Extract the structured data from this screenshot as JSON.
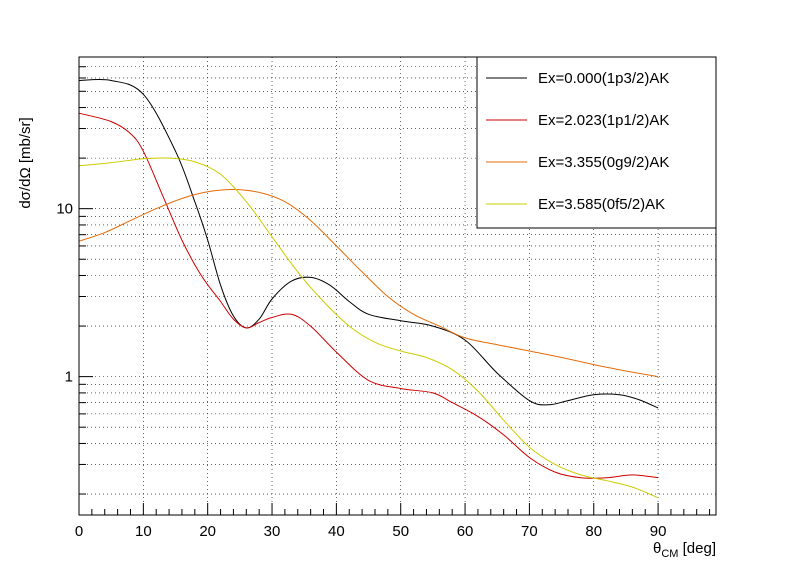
{
  "chart_data": {
    "type": "line",
    "title": "",
    "xlabel": {
      "main": "θ",
      "sub": "CM",
      "unit": " [deg]"
    },
    "ylabel": "dσ/dΩ [mb/sr]",
    "xlim": [
      0,
      99
    ],
    "ylim": [
      0.15,
      80
    ],
    "yscale": "log",
    "grid": true,
    "legend_position": "top-right",
    "x_ticks": [
      0,
      10,
      20,
      30,
      40,
      50,
      60,
      70,
      80,
      90
    ],
    "x_tick_labels": [
      "0",
      "10",
      "20",
      "30",
      "40",
      "50",
      "60",
      "70",
      "80",
      "90"
    ],
    "y_ticks": [
      1,
      10
    ],
    "y_tick_labels": [
      "1",
      "10"
    ],
    "series": [
      {
        "name": "Ex=0.000(1p3/2)AK",
        "color": "#000000",
        "x": [
          0,
          5,
          10,
          15,
          18,
          20,
          22,
          24,
          26,
          28,
          30,
          33,
          36,
          39,
          42,
          45,
          50,
          55,
          60,
          65,
          70,
          73,
          76,
          80,
          84,
          87,
          90
        ],
        "y": [
          58,
          58,
          48,
          22,
          11,
          6.5,
          3.5,
          2.3,
          1.95,
          2.2,
          2.9,
          3.7,
          3.9,
          3.5,
          2.8,
          2.35,
          2.15,
          2.0,
          1.65,
          1.05,
          0.72,
          0.68,
          0.72,
          0.78,
          0.78,
          0.73,
          0.65
        ]
      },
      {
        "name": "Ex=2.023(1p1/2)AK",
        "color": "#cc0000",
        "x": [
          0,
          5,
          8,
          10,
          13,
          16,
          19,
          22,
          24,
          26,
          28,
          30,
          33,
          36,
          40,
          45,
          50,
          55,
          58,
          62,
          66,
          70,
          74,
          78,
          82,
          86,
          90
        ],
        "y": [
          37,
          33,
          28,
          22,
          12,
          6.5,
          4,
          2.8,
          2.2,
          1.95,
          2.1,
          2.25,
          2.35,
          2.0,
          1.4,
          0.95,
          0.85,
          0.8,
          0.7,
          0.58,
          0.45,
          0.33,
          0.27,
          0.25,
          0.25,
          0.26,
          0.25
        ]
      },
      {
        "name": "Ex=3.355(0g9/2)AK",
        "color": "#e36c09",
        "x": [
          0,
          4,
          8,
          12,
          16,
          20,
          24,
          28,
          32,
          36,
          40,
          44,
          48,
          52,
          56,
          60,
          65,
          70,
          75,
          80,
          85,
          90
        ],
        "y": [
          6.4,
          7.2,
          8.5,
          10,
          11.5,
          12.6,
          13,
          12.5,
          11,
          8.5,
          6,
          4.2,
          3,
          2.35,
          2.0,
          1.7,
          1.55,
          1.42,
          1.3,
          1.18,
          1.08,
          1.0
        ]
      },
      {
        "name": "Ex=3.585(0f5/2)AK",
        "color": "#cccc00",
        "x": [
          0,
          5,
          10,
          14,
          18,
          22,
          26,
          30,
          34,
          38,
          42,
          46,
          50,
          54,
          58,
          62,
          66,
          70,
          74,
          78,
          82,
          86,
          90
        ],
        "y": [
          18,
          18.8,
          19.8,
          20,
          19,
          16,
          11,
          6.8,
          4.2,
          2.8,
          2.0,
          1.6,
          1.42,
          1.3,
          1.1,
          0.82,
          0.55,
          0.38,
          0.3,
          0.26,
          0.24,
          0.22,
          0.19
        ]
      }
    ]
  }
}
